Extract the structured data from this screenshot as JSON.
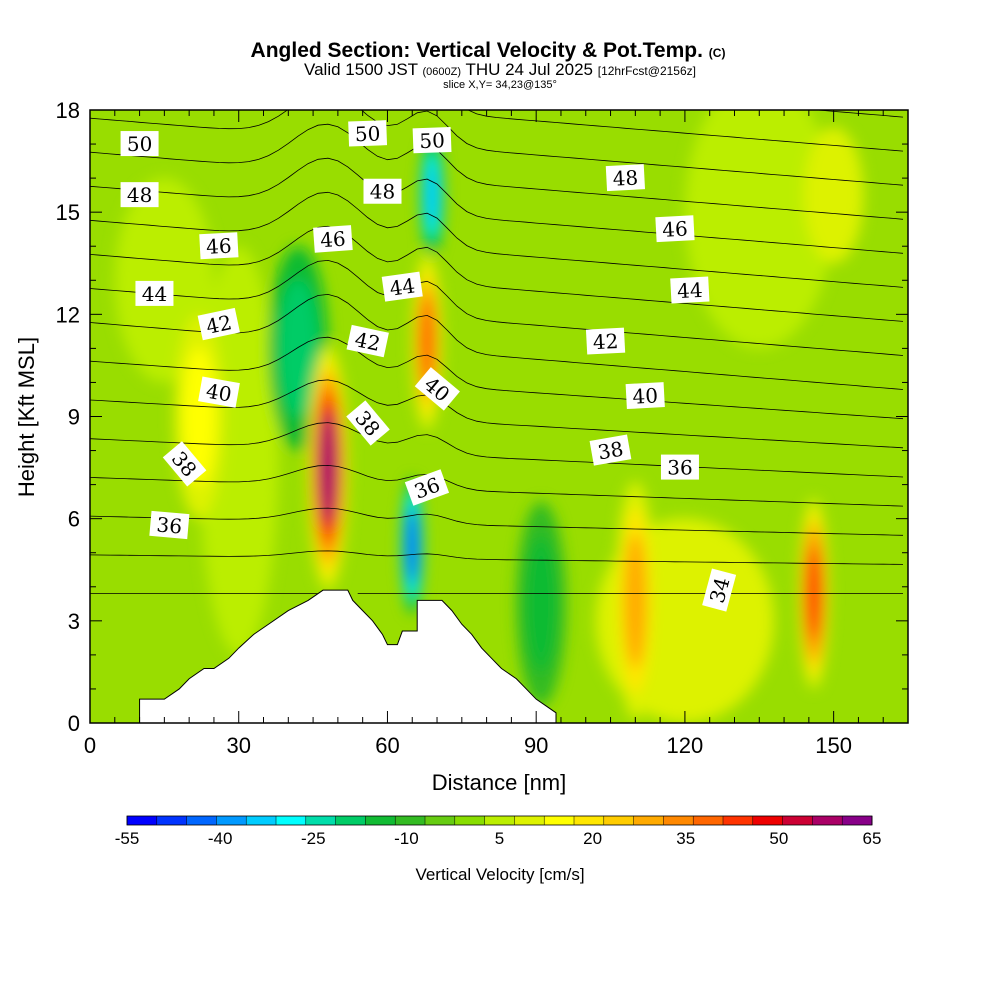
{
  "chart_data": {
    "type": "heatmap",
    "title": "Angled Section: Vertical Velocity & Pot.Temp.",
    "title_unit": "(C)",
    "subtitle_parts": [
      "Valid 1500 JST",
      "(0600Z)",
      "THU 24 Jul 2025",
      "[12hrFcst@2156z]"
    ],
    "subtitle_small": "slice X,Y= 34,23@135°",
    "xlabel": "Distance [nm]",
    "ylabel": "Height [Kft MSL]",
    "xlim": [
      0,
      165
    ],
    "ylim": [
      0,
      18
    ],
    "x_ticks": [
      0,
      30,
      60,
      90,
      120,
      150
    ],
    "y_ticks": [
      0,
      3,
      6,
      9,
      12,
      15,
      18
    ],
    "grid": false,
    "colorbar": {
      "label": "Vertical Velocity [cm/s]",
      "ticks": [
        -55,
        -40,
        -25,
        -10,
        5,
        20,
        35,
        50,
        65
      ],
      "min": -55,
      "max": 65,
      "step": 5,
      "colors": [
        "#0000ff",
        "#0033ff",
        "#0066ff",
        "#0099ff",
        "#00ccff",
        "#00ffff",
        "#00ddaa",
        "#00cc66",
        "#11bb33",
        "#33bb22",
        "#66cc11",
        "#88dd00",
        "#bbee00",
        "#ddf200",
        "#ffff00",
        "#ffe600",
        "#ffcc00",
        "#ffaa00",
        "#ff8800",
        "#ff6600",
        "#ff3300",
        "#ee0000",
        "#cc0033",
        "#aa0066",
        "#880088"
      ]
    },
    "vertical_velocity_features": [
      {
        "x": 48,
        "y": 7.5,
        "rx": 4,
        "ry": 3.6,
        "value": 62
      },
      {
        "x": 68,
        "y": 11.2,
        "rx": 3,
        "ry": 2.6,
        "value": 42
      },
      {
        "x": 65,
        "y": 5.2,
        "rx": 2.2,
        "ry": 2.0,
        "value": -45
      },
      {
        "x": 69,
        "y": 15.5,
        "rx": 2.4,
        "ry": 1.8,
        "value": -35
      },
      {
        "x": 42,
        "y": 11,
        "rx": 6,
        "ry": 3,
        "value": -20
      },
      {
        "x": 91,
        "y": 3.5,
        "rx": 5,
        "ry": 3,
        "value": -15
      },
      {
        "x": 146,
        "y": 3.8,
        "rx": 3,
        "ry": 2.8,
        "value": 48
      },
      {
        "x": 110,
        "y": 3.6,
        "rx": 4,
        "ry": 3.5,
        "value": 30
      },
      {
        "x": 22,
        "y": 9,
        "rx": 5,
        "ry": 3,
        "value": 18
      },
      {
        "x": 30,
        "y": 8,
        "rx": 8,
        "ry": 6,
        "value": 8
      },
      {
        "x": 120,
        "y": 3,
        "rx": 18,
        "ry": 3,
        "value": 14
      },
      {
        "x": 135,
        "y": 15,
        "rx": 15,
        "ry": 4,
        "value": 8
      },
      {
        "x": 150,
        "y": 15.5,
        "rx": 6,
        "ry": 2,
        "value": 10
      },
      {
        "x": 15,
        "y": 13,
        "rx": 10,
        "ry": 3,
        "value": 6
      }
    ],
    "terrain": [
      [
        10,
        0.7
      ],
      [
        15,
        0.7
      ],
      [
        18,
        1.0
      ],
      [
        20,
        1.3
      ],
      [
        23,
        1.6
      ],
      [
        25,
        1.6
      ],
      [
        28,
        1.9
      ],
      [
        30,
        2.2
      ],
      [
        33,
        2.6
      ],
      [
        36,
        2.9
      ],
      [
        40,
        3.3
      ],
      [
        44,
        3.6
      ],
      [
        47,
        3.9
      ],
      [
        52,
        3.9
      ],
      [
        53,
        3.6
      ],
      [
        55,
        3.3
      ],
      [
        57,
        3.0
      ],
      [
        59,
        2.6
      ],
      [
        60,
        2.3
      ],
      [
        62,
        2.3
      ],
      [
        63,
        2.7
      ],
      [
        66,
        2.7
      ],
      [
        66,
        3.6
      ],
      [
        71,
        3.6
      ],
      [
        73,
        3.3
      ],
      [
        75,
        2.9
      ],
      [
        77,
        2.6
      ],
      [
        79,
        2.2
      ],
      [
        81,
        1.9
      ],
      [
        83,
        1.6
      ],
      [
        86,
        1.3
      ],
      [
        88,
        1.0
      ],
      [
        90,
        0.7
      ],
      [
        92,
        0.5
      ],
      [
        94,
        0.3
      ]
    ],
    "isentropes": [
      33,
      34,
      35,
      36,
      37,
      38,
      39,
      40,
      41,
      42,
      43,
      44,
      45,
      46,
      47,
      48,
      49,
      50,
      51
    ],
    "isentrope_labels": [
      {
        "text": "50",
        "x": 10,
        "y": 17.0,
        "angle": 0
      },
      {
        "text": "50",
        "x": 56,
        "y": 17.3,
        "angle": -2
      },
      {
        "text": "50",
        "x": 69,
        "y": 17.1,
        "angle": -2
      },
      {
        "text": "48",
        "x": 10,
        "y": 15.5,
        "angle": 0
      },
      {
        "text": "48",
        "x": 59,
        "y": 15.6,
        "angle": 0
      },
      {
        "text": "48",
        "x": 108,
        "y": 16.0,
        "angle": -3
      },
      {
        "text": "46",
        "x": 26,
        "y": 14.0,
        "angle": -3
      },
      {
        "text": "46",
        "x": 49,
        "y": 14.2,
        "angle": -4
      },
      {
        "text": "46",
        "x": 118,
        "y": 14.5,
        "angle": -3
      },
      {
        "text": "44",
        "x": 13,
        "y": 12.6,
        "angle": 0
      },
      {
        "text": "44",
        "x": 63,
        "y": 12.8,
        "angle": -8
      },
      {
        "text": "44",
        "x": 121,
        "y": 12.7,
        "angle": -3
      },
      {
        "text": "42",
        "x": 26,
        "y": 11.7,
        "angle": -12
      },
      {
        "text": "42",
        "x": 56,
        "y": 11.2,
        "angle": 12
      },
      {
        "text": "42",
        "x": 104,
        "y": 11.2,
        "angle": -3
      },
      {
        "text": "40",
        "x": 26,
        "y": 9.7,
        "angle": 10
      },
      {
        "text": "40",
        "x": 70,
        "y": 9.8,
        "angle": 40
      },
      {
        "text": "40",
        "x": 112,
        "y": 9.6,
        "angle": -3
      },
      {
        "text": "38",
        "x": 19,
        "y": 7.6,
        "angle": 50
      },
      {
        "text": "38",
        "x": 56,
        "y": 8.8,
        "angle": 50
      },
      {
        "text": "38",
        "x": 105,
        "y": 8.0,
        "angle": -10
      },
      {
        "text": "36",
        "x": 16,
        "y": 5.8,
        "angle": 5
      },
      {
        "text": "36",
        "x": 68,
        "y": 6.9,
        "angle": -20
      },
      {
        "text": "36",
        "x": 119,
        "y": 7.5,
        "angle": 0
      },
      {
        "text": "34",
        "x": 127,
        "y": 3.9,
        "angle": -75
      }
    ]
  }
}
